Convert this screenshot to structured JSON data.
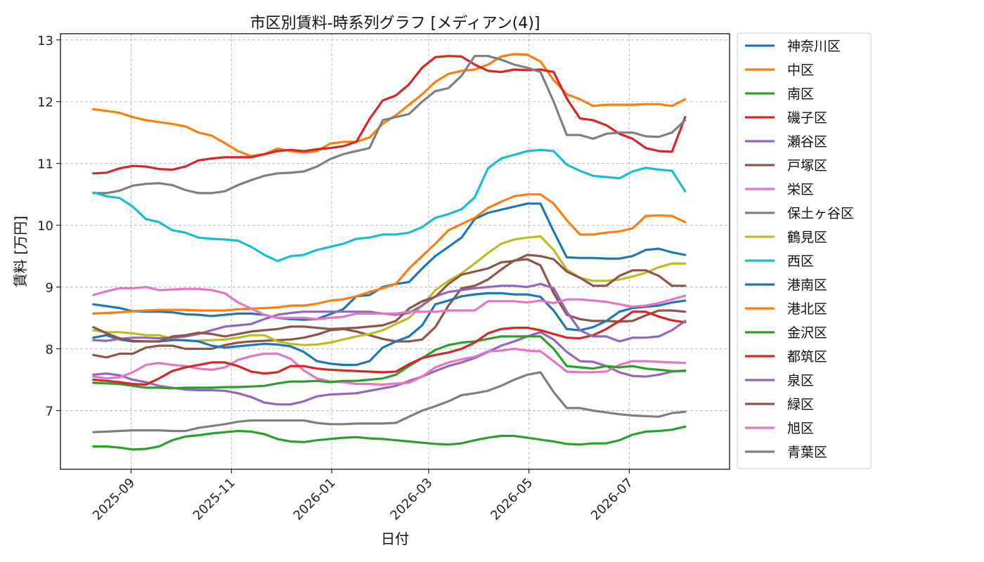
{
  "chart_data": {
    "type": "line",
    "title": "市区別賃料-時系列グラフ [メディアン(4)]",
    "xlabel": "日付",
    "ylabel": "賃料 [万円]",
    "x_axis_kind": "date",
    "xlim": [
      "2025-07-20",
      "2026-08-31"
    ],
    "ylim": [
      6.05,
      13.1
    ],
    "xticks": [
      "2025-09",
      "2025-11",
      "2026-01",
      "2026-03",
      "2026-05",
      "2026-07"
    ],
    "yticks": [
      7,
      8,
      9,
      10,
      11,
      12,
      13
    ],
    "grid": true,
    "legend_position": "outside-right",
    "x": [
      "2025-08-09",
      "2025-08-17",
      "2025-08-25",
      "2025-09-02",
      "2025-09-10",
      "2025-09-18",
      "2025-09-26",
      "2025-10-04",
      "2025-10-12",
      "2025-10-20",
      "2025-10-28",
      "2025-11-05",
      "2025-11-13",
      "2025-11-21",
      "2025-11-29",
      "2025-12-07",
      "2025-12-15",
      "2025-12-23",
      "2025-12-31",
      "2026-01-08",
      "2026-01-16",
      "2026-01-24",
      "2026-02-01",
      "2026-02-09",
      "2026-02-17",
      "2026-02-25",
      "2026-03-05",
      "2026-03-13",
      "2026-03-21",
      "2026-03-29",
      "2026-04-06",
      "2026-04-14",
      "2026-04-22",
      "2026-04-30",
      "2026-05-08",
      "2026-05-16",
      "2026-05-24",
      "2026-06-01",
      "2026-06-09",
      "2026-06-17",
      "2026-06-25",
      "2026-07-03",
      "2026-07-11",
      "2026-07-19",
      "2026-07-27",
      "2026-08-04"
    ],
    "series": [
      {
        "name": "神奈川区",
        "color": "#1f77b4",
        "values": [
          8.72,
          8.69,
          8.66,
          8.61,
          8.6,
          8.6,
          8.59,
          8.56,
          8.55,
          8.53,
          8.55,
          8.57,
          8.57,
          8.55,
          8.5,
          8.48,
          8.47,
          8.48,
          8.56,
          8.64,
          8.85,
          8.87,
          9.0,
          9.05,
          9.08,
          9.3,
          9.5,
          9.65,
          9.8,
          10.1,
          10.2,
          10.25,
          10.3,
          10.35,
          10.35,
          9.9,
          9.48,
          9.47,
          9.47,
          9.46,
          9.46,
          9.5,
          9.6,
          9.62,
          9.56,
          9.52
        ]
      },
      {
        "name": "中区",
        "color": "#ff7f0e",
        "values": [
          11.88,
          11.85,
          11.82,
          11.75,
          11.7,
          11.67,
          11.64,
          11.6,
          11.5,
          11.45,
          11.33,
          11.2,
          11.12,
          11.15,
          11.24,
          11.2,
          11.18,
          11.2,
          11.32,
          11.35,
          11.35,
          11.42,
          11.64,
          11.78,
          11.95,
          12.12,
          12.32,
          12.45,
          12.5,
          12.52,
          12.6,
          12.73,
          12.77,
          12.76,
          12.65,
          12.35,
          12.12,
          12.04,
          11.93,
          11.95,
          11.95,
          11.95,
          11.96,
          11.96,
          11.93,
          12.04
        ]
      },
      {
        "name": "南区",
        "color": "#2ca02c",
        "values": [
          6.42,
          6.42,
          6.4,
          6.37,
          6.38,
          6.42,
          6.52,
          6.58,
          6.6,
          6.63,
          6.65,
          6.67,
          6.66,
          6.62,
          6.54,
          6.5,
          6.49,
          6.52,
          6.54,
          6.56,
          6.57,
          6.55,
          6.54,
          6.52,
          6.5,
          6.48,
          6.46,
          6.45,
          6.47,
          6.52,
          6.56,
          6.59,
          6.59,
          6.56,
          6.53,
          6.5,
          6.46,
          6.45,
          6.47,
          6.47,
          6.52,
          6.61,
          6.66,
          6.67,
          6.69,
          6.74
        ]
      },
      {
        "name": "磯子区",
        "color": "#d62728",
        "values": [
          10.84,
          10.85,
          10.92,
          10.96,
          10.95,
          10.91,
          10.9,
          10.95,
          11.05,
          11.08,
          11.1,
          11.1,
          11.1,
          11.15,
          11.2,
          11.22,
          11.2,
          11.23,
          11.25,
          11.28,
          11.35,
          11.72,
          12.02,
          12.1,
          12.28,
          12.55,
          12.72,
          12.74,
          12.73,
          12.6,
          12.5,
          12.48,
          12.52,
          12.51,
          12.52,
          12.48,
          12.05,
          11.73,
          11.7,
          11.62,
          11.48,
          11.4,
          11.25,
          11.2,
          11.19,
          11.75
        ]
      },
      {
        "name": "瀬谷区",
        "color": "#9467bd",
        "values": [
          7.58,
          7.6,
          7.57,
          7.5,
          7.46,
          7.4,
          7.37,
          7.34,
          7.33,
          7.33,
          7.32,
          7.28,
          7.22,
          7.13,
          7.1,
          7.1,
          7.15,
          7.23,
          7.26,
          7.27,
          7.28,
          7.32,
          7.36,
          7.4,
          7.48,
          7.55,
          7.64,
          7.72,
          7.78,
          7.85,
          7.95,
          8.05,
          8.12,
          8.2,
          8.27,
          8.15,
          7.95,
          7.8,
          7.79,
          7.72,
          7.62,
          7.56,
          7.55,
          7.58,
          7.63,
          7.65
        ]
      },
      {
        "name": "戸塚区",
        "color": "#8c564b",
        "values": [
          7.9,
          7.86,
          7.92,
          7.92,
          8.02,
          8.05,
          8.05,
          8.0,
          8.0,
          8.0,
          8.06,
          8.1,
          8.12,
          8.13,
          8.14,
          8.15,
          8.18,
          8.23,
          8.3,
          8.32,
          8.28,
          8.22,
          8.16,
          8.12,
          8.12,
          8.15,
          8.35,
          8.7,
          8.98,
          9.02,
          9.12,
          9.28,
          9.43,
          9.45,
          9.35,
          8.9,
          8.55,
          8.48,
          8.45,
          8.45,
          8.44,
          8.45,
          8.54,
          8.62,
          8.62,
          8.6
        ]
      },
      {
        "name": "栄区",
        "color": "#e377c2",
        "values": [
          7.55,
          7.52,
          7.54,
          7.62,
          7.74,
          7.77,
          7.74,
          7.72,
          7.68,
          7.66,
          7.7,
          7.82,
          7.88,
          7.92,
          7.92,
          7.84,
          7.65,
          7.52,
          7.47,
          7.46,
          7.43,
          7.43,
          7.42,
          7.44,
          7.45,
          7.55,
          7.7,
          7.78,
          7.83,
          7.87,
          7.96,
          7.97,
          8.0,
          7.97,
          7.96,
          7.8,
          7.63,
          7.62,
          7.62,
          7.63,
          7.74,
          7.8,
          7.8,
          7.79,
          7.78,
          7.77
        ]
      },
      {
        "name": "保土ヶ谷区",
        "color": "#7f7f7f",
        "values": [
          10.52,
          10.52,
          10.56,
          10.64,
          10.67,
          10.68,
          10.65,
          10.57,
          10.52,
          10.52,
          10.55,
          10.65,
          10.73,
          10.8,
          10.84,
          10.85,
          10.87,
          10.95,
          11.07,
          11.15,
          11.2,
          11.25,
          11.7,
          11.75,
          11.8,
          12.0,
          12.17,
          12.22,
          12.42,
          12.74,
          12.74,
          12.68,
          12.6,
          12.55,
          12.48,
          12.0,
          11.46,
          11.46,
          11.4,
          11.48,
          11.5,
          11.5,
          11.44,
          11.43,
          11.5,
          11.7
        ]
      },
      {
        "name": "鶴見区",
        "color": "#bcbd22",
        "values": [
          8.3,
          8.27,
          8.27,
          8.25,
          8.22,
          8.22,
          8.16,
          8.13,
          8.13,
          8.14,
          8.15,
          8.18,
          8.22,
          8.22,
          8.12,
          8.08,
          8.06,
          8.07,
          8.1,
          8.15,
          8.2,
          8.24,
          8.3,
          8.4,
          8.5,
          8.7,
          8.95,
          9.1,
          9.22,
          9.38,
          9.55,
          9.7,
          9.77,
          9.8,
          9.82,
          9.6,
          9.28,
          9.15,
          9.1,
          9.1,
          9.12,
          9.17,
          9.23,
          9.32,
          9.38,
          9.38
        ]
      },
      {
        "name": "西区",
        "color": "#17becf",
        "values": [
          10.53,
          10.47,
          10.44,
          10.3,
          10.1,
          10.05,
          9.92,
          9.88,
          9.8,
          9.78,
          9.77,
          9.75,
          9.65,
          9.52,
          9.42,
          9.5,
          9.52,
          9.6,
          9.65,
          9.7,
          9.78,
          9.8,
          9.85,
          9.85,
          9.88,
          9.97,
          10.12,
          10.18,
          10.26,
          10.45,
          10.92,
          11.08,
          11.14,
          11.2,
          11.22,
          11.2,
          10.98,
          10.88,
          10.8,
          10.78,
          10.76,
          10.87,
          10.93,
          10.9,
          10.88,
          10.55
        ]
      },
      {
        "name": "港南区",
        "color": "#1f77b4",
        "values": [
          8.18,
          8.22,
          8.15,
          8.12,
          8.12,
          8.12,
          8.14,
          8.14,
          8.12,
          8.05,
          8.02,
          8.04,
          8.06,
          8.08,
          8.07,
          8.04,
          7.95,
          7.8,
          7.76,
          7.74,
          7.74,
          7.8,
          8.02,
          8.12,
          8.2,
          8.38,
          8.72,
          8.78,
          8.85,
          8.88,
          8.9,
          8.9,
          8.88,
          8.88,
          8.84,
          8.62,
          8.32,
          8.3,
          8.35,
          8.45,
          8.6,
          8.66,
          8.68,
          8.7,
          8.75,
          8.78
        ]
      },
      {
        "name": "港北区",
        "color": "#ff7f0e",
        "values": [
          8.57,
          8.58,
          8.59,
          8.61,
          8.62,
          8.63,
          8.63,
          8.63,
          8.62,
          8.62,
          8.62,
          8.64,
          8.65,
          8.66,
          8.67,
          8.7,
          8.7,
          8.73,
          8.78,
          8.8,
          8.85,
          8.92,
          8.98,
          9.05,
          9.3,
          9.5,
          9.7,
          9.92,
          10.02,
          10.12,
          10.28,
          10.38,
          10.47,
          10.5,
          10.5,
          10.35,
          10.08,
          9.85,
          9.85,
          9.88,
          9.9,
          9.95,
          10.15,
          10.16,
          10.15,
          10.05
        ]
      },
      {
        "name": "金沢区",
        "color": "#2ca02c",
        "values": [
          7.45,
          7.44,
          7.43,
          7.4,
          7.37,
          7.37,
          7.36,
          7.37,
          7.37,
          7.37,
          7.38,
          7.38,
          7.39,
          7.4,
          7.44,
          7.47,
          7.47,
          7.48,
          7.46,
          7.48,
          7.48,
          7.5,
          7.52,
          7.58,
          7.72,
          7.85,
          7.98,
          8.06,
          8.1,
          8.12,
          8.16,
          8.2,
          8.2,
          8.2,
          8.2,
          8.0,
          7.72,
          7.7,
          7.68,
          7.72,
          7.7,
          7.72,
          7.68,
          7.66,
          7.64,
          7.64
        ]
      },
      {
        "name": "都筑区",
        "color": "#d62728",
        "values": [
          7.5,
          7.48,
          7.46,
          7.43,
          7.42,
          7.52,
          7.64,
          7.7,
          7.74,
          7.78,
          7.78,
          7.72,
          7.63,
          7.6,
          7.62,
          7.72,
          7.72,
          7.68,
          7.66,
          7.65,
          7.64,
          7.63,
          7.62,
          7.63,
          7.75,
          7.85,
          7.9,
          7.94,
          8.0,
          8.1,
          8.25,
          8.32,
          8.34,
          8.34,
          8.3,
          8.24,
          8.18,
          8.17,
          8.22,
          8.32,
          8.45,
          8.6,
          8.6,
          8.52,
          8.46,
          8.43
        ]
      },
      {
        "name": "泉区",
        "color": "#9467bd",
        "values": [
          8.14,
          8.13,
          8.16,
          8.18,
          8.18,
          8.17,
          8.18,
          8.2,
          8.24,
          8.3,
          8.36,
          8.38,
          8.4,
          8.48,
          8.55,
          8.58,
          8.6,
          8.6,
          8.6,
          8.6,
          8.6,
          8.6,
          8.57,
          8.55,
          8.58,
          8.7,
          8.85,
          8.92,
          8.95,
          8.98,
          9.0,
          9.02,
          9.02,
          9.0,
          9.05,
          8.98,
          8.6,
          8.3,
          8.2,
          8.2,
          8.12,
          8.18,
          8.18,
          8.2,
          8.3,
          8.45
        ]
      },
      {
        "name": "緑区",
        "color": "#8c564b",
        "values": [
          8.35,
          8.25,
          8.17,
          8.13,
          8.12,
          8.12,
          8.2,
          8.22,
          8.26,
          8.24,
          8.2,
          8.24,
          8.28,
          8.3,
          8.32,
          8.36,
          8.36,
          8.34,
          8.32,
          8.33,
          8.34,
          8.36,
          8.38,
          8.45,
          8.65,
          8.77,
          8.84,
          9.05,
          9.2,
          9.25,
          9.3,
          9.4,
          9.42,
          9.52,
          9.5,
          9.45,
          9.25,
          9.15,
          9.02,
          9.02,
          9.18,
          9.27,
          9.27,
          9.18,
          9.02,
          9.02
        ]
      },
      {
        "name": "旭区",
        "color": "#e377c2",
        "values": [
          8.87,
          8.93,
          8.98,
          8.98,
          9.0,
          8.95,
          8.96,
          8.97,
          8.97,
          8.95,
          8.9,
          8.75,
          8.65,
          8.55,
          8.5,
          8.5,
          8.5,
          8.48,
          8.5,
          8.52,
          8.57,
          8.57,
          8.57,
          8.57,
          8.6,
          8.6,
          8.6,
          8.62,
          8.62,
          8.62,
          8.77,
          8.77,
          8.77,
          8.75,
          8.78,
          8.74,
          8.8,
          8.8,
          8.78,
          8.76,
          8.72,
          8.68,
          8.7,
          8.74,
          8.8,
          8.86
        ]
      },
      {
        "name": "青葉区",
        "color": "#7f7f7f",
        "values": [
          6.65,
          6.66,
          6.67,
          6.68,
          6.68,
          6.68,
          6.67,
          6.67,
          6.72,
          6.75,
          6.78,
          6.82,
          6.84,
          6.84,
          6.84,
          6.84,
          6.84,
          6.8,
          6.78,
          6.78,
          6.79,
          6.79,
          6.79,
          6.8,
          6.9,
          7.0,
          7.07,
          7.15,
          7.25,
          7.28,
          7.32,
          7.4,
          7.5,
          7.58,
          7.62,
          7.3,
          7.04,
          7.04,
          7.0,
          6.97,
          6.94,
          6.92,
          6.91,
          6.9,
          6.96,
          6.98
        ]
      }
    ]
  }
}
